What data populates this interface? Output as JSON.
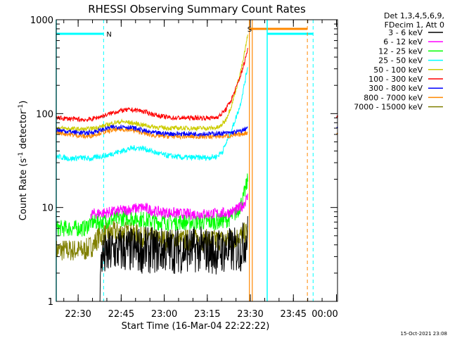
{
  "chart_data": {
    "type": "line",
    "title": "RHESSI Observing Summary Count Rates",
    "xlabel": "Start Time (16-Mar-04 22:22:22)",
    "ylabel_main": "Count Rate (s",
    "ylabel_sup1": "-1",
    "ylabel_mid": " detector",
    "ylabel_sup2": "-1",
    "ylabel_end": ")",
    "yscale": "log",
    "ylim": [
      1,
      1000
    ],
    "xlim_minutes": [
      0,
      98
    ],
    "x_ticks": [
      {
        "label": "22:30",
        "t": 7.63
      },
      {
        "label": "22:45",
        "t": 22.63
      },
      {
        "label": "23:00",
        "t": 37.63
      },
      {
        "label": "23:15",
        "t": 52.63
      },
      {
        "label": "23:30",
        "t": 67.63
      },
      {
        "label": "23:45",
        "t": 82.63
      },
      {
        "label": "00:00",
        "t": 97.63
      }
    ],
    "y_ticks": [
      {
        "label": "1",
        "v": 1
      },
      {
        "label": "10",
        "v": 10
      },
      {
        "label": "100",
        "v": 100
      },
      {
        "label": "1000",
        "v": 1000
      }
    ],
    "legend_header": [
      "Det 1,3,4,5,6,9,",
      "FDecim 1, Att 0"
    ],
    "legend_position": "right",
    "series": [
      {
        "name": "3 - 6 keV",
        "color": "#000000",
        "points": [
          [
            15,
            1
          ],
          [
            15.8,
            3
          ],
          [
            17,
            3
          ],
          [
            20,
            3.5
          ],
          [
            25,
            3.5
          ],
          [
            30,
            3.5
          ],
          [
            35,
            3.5
          ],
          [
            40,
            3.5
          ],
          [
            45,
            3.5
          ],
          [
            50,
            3.6
          ],
          [
            55,
            3.4
          ],
          [
            60,
            3.5
          ],
          [
            64,
            3.5
          ],
          [
            66.8,
            5
          ]
        ]
      },
      {
        "name": "6 - 12 keV",
        "color": "#ff00ff",
        "points": [
          [
            12,
            8.5
          ],
          [
            20,
            9
          ],
          [
            25,
            9.5
          ],
          [
            30,
            10
          ],
          [
            35,
            9
          ],
          [
            40,
            8.8
          ],
          [
            45,
            8.5
          ],
          [
            50,
            8.5
          ],
          [
            55,
            8.6
          ],
          [
            60,
            8.8
          ],
          [
            63,
            9.5
          ],
          [
            65,
            10.5
          ],
          [
            66.8,
            13
          ]
        ]
      },
      {
        "name": "12 - 25 keV",
        "color": "#00ff00",
        "points": [
          [
            0,
            6
          ],
          [
            5,
            6
          ],
          [
            10,
            6
          ],
          [
            12,
            7
          ],
          [
            15,
            7
          ],
          [
            20,
            7.5
          ],
          [
            25,
            7.8
          ],
          [
            30,
            7.5
          ],
          [
            35,
            7
          ],
          [
            40,
            7
          ],
          [
            45,
            7
          ],
          [
            50,
            7
          ],
          [
            55,
            7
          ],
          [
            60,
            7.5
          ],
          [
            63,
            9
          ],
          [
            65,
            12
          ],
          [
            66.8,
            20
          ]
        ]
      },
      {
        "name": "25 - 50 keV",
        "color": "#00ffff",
        "points": [
          [
            0,
            35
          ],
          [
            3,
            34
          ],
          [
            5,
            33
          ],
          [
            8,
            34
          ],
          [
            12,
            33
          ],
          [
            15,
            35
          ],
          [
            18,
            36
          ],
          [
            20,
            38
          ],
          [
            23,
            40
          ],
          [
            25,
            42
          ],
          [
            27,
            43
          ],
          [
            30,
            43
          ],
          [
            32,
            41
          ],
          [
            35,
            38
          ],
          [
            38,
            36
          ],
          [
            41,
            35
          ],
          [
            44,
            34
          ],
          [
            47,
            34
          ],
          [
            50,
            34
          ],
          [
            53,
            34
          ],
          [
            56,
            35
          ],
          [
            58,
            40
          ],
          [
            60,
            55
          ],
          [
            62,
            80
          ],
          [
            64,
            120
          ],
          [
            65.5,
            200
          ],
          [
            66.8,
            330
          ]
        ]
      },
      {
        "name": "50 - 100 keV",
        "color": "#cccc00",
        "points": [
          [
            0,
            70
          ],
          [
            5,
            69
          ],
          [
            10,
            68
          ],
          [
            12,
            69
          ],
          [
            15,
            72
          ],
          [
            18,
            76
          ],
          [
            20,
            80
          ],
          [
            23,
            82
          ],
          [
            26,
            80
          ],
          [
            30,
            76
          ],
          [
            33,
            73
          ],
          [
            36,
            71
          ],
          [
            40,
            70
          ],
          [
            45,
            70
          ],
          [
            50,
            70
          ],
          [
            55,
            70
          ],
          [
            57,
            72
          ],
          [
            59,
            85
          ],
          [
            61,
            120
          ],
          [
            63,
            200
          ],
          [
            65,
            350
          ],
          [
            66.8,
            700
          ]
        ]
      },
      {
        "name": "100 - 300 keV",
        "color": "#ff0000",
        "points": [
          [
            0,
            90
          ],
          [
            5,
            88
          ],
          [
            10,
            86
          ],
          [
            12,
            87
          ],
          [
            15,
            92
          ],
          [
            18,
            98
          ],
          [
            20,
            103
          ],
          [
            23,
            108
          ],
          [
            26,
            110
          ],
          [
            29,
            108
          ],
          [
            32,
            102
          ],
          [
            35,
            96
          ],
          [
            38,
            92
          ],
          [
            41,
            90
          ],
          [
            45,
            90
          ],
          [
            50,
            90
          ],
          [
            55,
            90
          ],
          [
            57,
            95
          ],
          [
            59,
            110
          ],
          [
            61,
            140
          ],
          [
            63,
            200
          ],
          [
            65,
            300
          ],
          [
            66.8,
            500
          ]
        ]
      },
      {
        "name": "300 - 800 keV",
        "color": "#0000ff",
        "points": [
          [
            0,
            67
          ],
          [
            5,
            64
          ],
          [
            10,
            62
          ],
          [
            12,
            63
          ],
          [
            15,
            66
          ],
          [
            18,
            70
          ],
          [
            20,
            72
          ],
          [
            23,
            73
          ],
          [
            26,
            71
          ],
          [
            29,
            68
          ],
          [
            32,
            64
          ],
          [
            35,
            62
          ],
          [
            40,
            61
          ],
          [
            45,
            61
          ],
          [
            50,
            61
          ],
          [
            55,
            61
          ],
          [
            60,
            62
          ],
          [
            63,
            64
          ],
          [
            65,
            66
          ],
          [
            66.8,
            72
          ]
        ]
      },
      {
        "name": "800 - 7000 keV",
        "color": "#ff8800",
        "points": [
          [
            0,
            63
          ],
          [
            5,
            60
          ],
          [
            10,
            57
          ],
          [
            12,
            58
          ],
          [
            15,
            62
          ],
          [
            18,
            65
          ],
          [
            20,
            67
          ],
          [
            23,
            68
          ],
          [
            26,
            67
          ],
          [
            29,
            64
          ],
          [
            32,
            60
          ],
          [
            35,
            58
          ],
          [
            40,
            57
          ],
          [
            45,
            57
          ],
          [
            50,
            57
          ],
          [
            55,
            57
          ],
          [
            60,
            58
          ],
          [
            63,
            59
          ],
          [
            65,
            61
          ],
          [
            66.8,
            63
          ]
        ]
      },
      {
        "name": "7000 - 15000 keV",
        "color": "#808000",
        "points": [
          [
            0,
            3.5
          ],
          [
            5,
            3.5
          ],
          [
            10,
            3.5
          ],
          [
            13,
            4
          ],
          [
            15,
            5
          ],
          [
            20,
            5.5
          ],
          [
            25,
            5.5
          ],
          [
            30,
            5
          ],
          [
            35,
            4.5
          ],
          [
            40,
            4.5
          ],
          [
            45,
            4.5
          ],
          [
            50,
            4.5
          ],
          [
            55,
            4.5
          ],
          [
            60,
            4.5
          ],
          [
            63,
            4.8
          ],
          [
            66.8,
            5.5
          ]
        ]
      }
    ],
    "post_series": [
      {
        "color": "#ff0000",
        "points": [
          [
            97.8,
            90
          ],
          [
            98,
            95
          ]
        ]
      },
      {
        "color": "#0000ff",
        "points": [
          [
            97.8,
            70
          ],
          [
            98,
            72
          ]
        ]
      },
      {
        "color": "#ff8800",
        "points": [
          [
            97.8,
            60
          ],
          [
            98,
            62
          ]
        ]
      }
    ],
    "markers": {
      "night_label": "N",
      "saa_label": "S",
      "night_intervals": [
        [
          0,
          16.5
        ],
        [
          73.5,
          89.5
        ]
      ],
      "attenuator_interval": [
        67.3,
        87.5
      ],
      "cyan_solid_lines": [
        0,
        73.5
      ],
      "cyan_dashed_lines": [
        16.5,
        89.5
      ],
      "orange_solid_lines": [
        67.3,
        68.3
      ],
      "orange_dashed_lines": [
        87.5
      ]
    },
    "timestamp": "15-Oct-2021 23:08"
  }
}
